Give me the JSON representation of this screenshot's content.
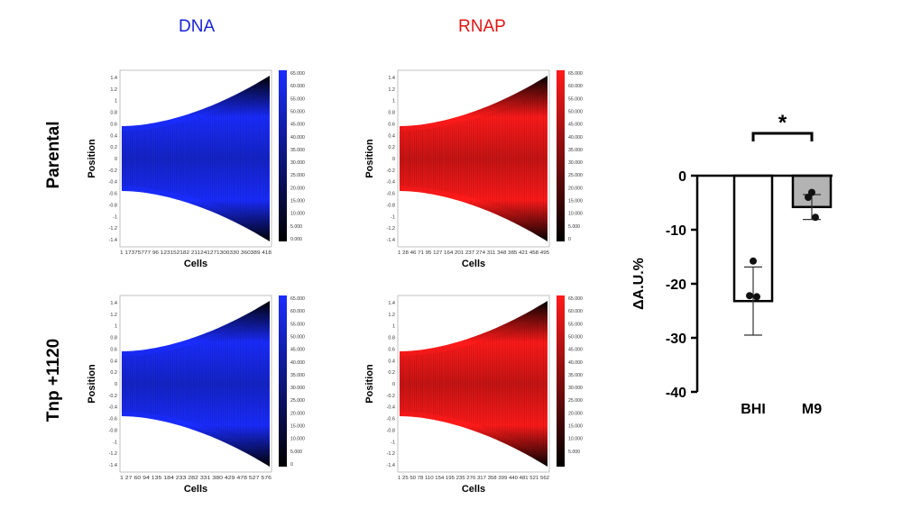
{
  "columns": {
    "dna": "DNA",
    "rnap": "RNAP"
  },
  "rows": {
    "parental": "Parental",
    "tnp": "Tnp +1120"
  },
  "kymograph": {
    "y_axis_label": "Position",
    "x_axis_label": "Cells",
    "position_ticks": [
      "1.4",
      "1.2",
      "1",
      "0.8",
      "0.6",
      "0.4",
      "0.2",
      "0",
      "-0.2",
      "-0.4",
      "-0.6",
      "-0.8",
      "-1",
      "-1.2",
      "-1.4"
    ],
    "colors": {
      "dna": "#1a2cff",
      "rnap": "#ff1a1a"
    },
    "panels": [
      {
        "id": "parental-dna",
        "x_ticks": "1 17375777 96 123152182 211241271300330 360389 418",
        "colorbar_ticks": [
          "65.000",
          "60.000",
          "55.000",
          "50.000",
          "45.000",
          "40.000",
          "35.000",
          "30.000",
          "25.000",
          "20.000",
          "15.000",
          "10.000",
          "5.000",
          "0.000"
        ]
      },
      {
        "id": "parental-rnap",
        "x_ticks": "1 28 46 71 95 127 164 201 237 274 311 348 385 421 458 495",
        "colorbar_ticks": [
          "65.000",
          "60.000",
          "55.000",
          "50.000",
          "45.000",
          "40.000",
          "35.000",
          "30.000",
          "25.000",
          "20.000",
          "15.000",
          "10.000",
          "5.000",
          "0"
        ]
      },
      {
        "id": "tnp-dna",
        "x_ticks": "1 27 60 94 135 184 233 282 331 380 429 478 527 576",
        "colorbar_ticks": [
          "65.000",
          "60.000",
          "55.000",
          "50.000",
          "45.000",
          "40.000",
          "35.000",
          "30.000",
          "25.000",
          "20.000",
          "15.000",
          "10.000",
          "5.000",
          "0"
        ]
      },
      {
        "id": "tnp-rnap",
        "x_ticks": "1 25 50 78 110 154 195 235 276 317 358 399 440 481 521 562",
        "colorbar_ticks": [
          "65.000",
          "60.000",
          "55.000",
          "50.000",
          "45.000",
          "40.000",
          "35.000",
          "30.000",
          "25.000",
          "20.000",
          "15.000",
          "10.000",
          "5.000"
        ]
      }
    ]
  },
  "chart_data": {
    "type": "bar",
    "categories": [
      "BHI",
      "M9"
    ],
    "values": [
      -23.2,
      -5.8
    ],
    "error": [
      6.3,
      2.3
    ],
    "points": [
      [
        -15.8,
        -22.2,
        -22.4
      ],
      [
        -3.1,
        -4.0,
        -7.7
      ]
    ],
    "bar_fill": [
      "#ffffff",
      "#b3b3b3"
    ],
    "ylabel": "ΔA.U.%",
    "xlabel": "",
    "ylim": [
      -40,
      0
    ],
    "yticks": [
      0,
      -10,
      -20,
      -30,
      -40
    ],
    "ytick_labels": [
      "0",
      "-10",
      "-20",
      "-30",
      "-40"
    ],
    "significance": "*"
  }
}
